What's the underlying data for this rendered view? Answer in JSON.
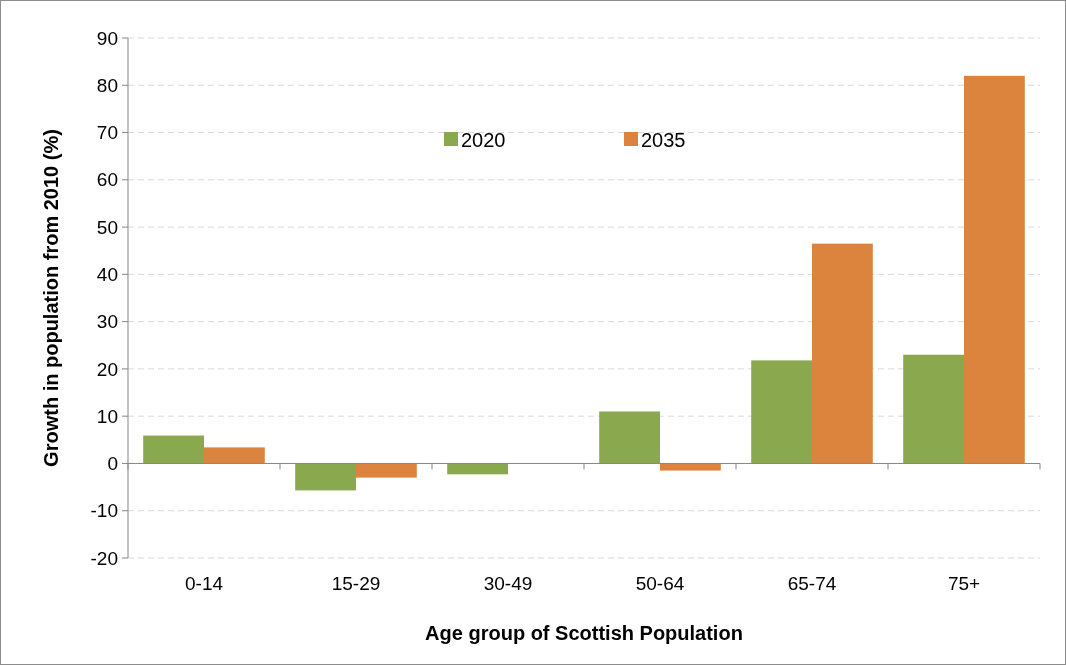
{
  "chart_data": {
    "type": "bar",
    "xlabel": "Age group of Scottish Population",
    "ylabel": "Growth in population from 2010 (%)",
    "categories": [
      "0-14",
      "15-29",
      "30-49",
      "50-64",
      "65-74",
      "75+"
    ],
    "series": [
      {
        "name": "2020",
        "color": "#8aa84e",
        "values": [
          5.9,
          -5.7,
          -2.3,
          11,
          21.8,
          23
        ]
      },
      {
        "name": "2035",
        "color": "#dc843e",
        "values": [
          3.4,
          -3,
          0,
          -1.5,
          46.5,
          82
        ]
      }
    ],
    "ylim": [
      -20,
      90
    ],
    "yticks": [
      -20,
      -10,
      0,
      10,
      20,
      30,
      40,
      50,
      60,
      70,
      80,
      90
    ],
    "grid": "y",
    "legend": "top"
  }
}
